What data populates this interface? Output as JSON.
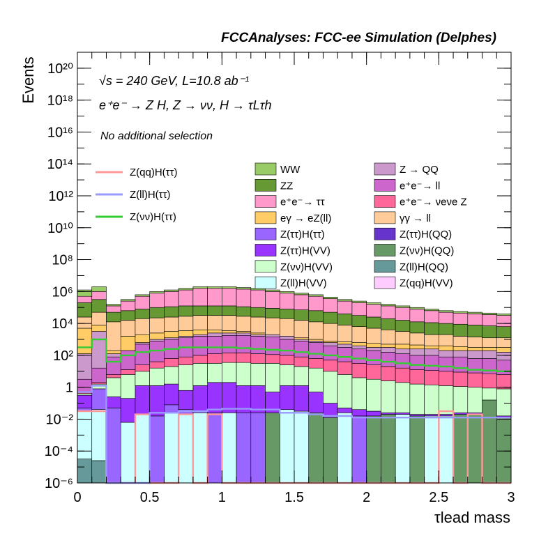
{
  "chart_data": {
    "type": "histogram-stack",
    "title": "FCCAnalyses: FCC-ee Simulation (Delphes)",
    "annotations": {
      "line1": "√s = 240 GeV, L=10.8 ab⁻¹",
      "line2": "e⁺e⁻ → Z H, Z → νν, H → τLτh",
      "line3": "No additional selection"
    },
    "xlabel": "τlead mass",
    "ylabel": "Events",
    "xlim": [
      0,
      3
    ],
    "ylim": [
      1e-06,
      1e+21
    ],
    "yscale": "log",
    "x_ticks": [
      "0",
      "0.5",
      "1",
      "1.5",
      "2",
      "2.5",
      "3"
    ],
    "x_tick_values": [
      0,
      0.5,
      1,
      1.5,
      2,
      2.5,
      3
    ],
    "y_ticks": [
      "10⁻⁶",
      "10⁻⁴",
      "10⁻²",
      "1",
      "10²",
      "10⁴",
      "10⁶",
      "10⁸",
      "10¹⁰",
      "10¹²",
      "10¹⁴",
      "10¹⁶",
      "10¹⁸",
      "10²⁰"
    ],
    "y_tick_exponents": [
      -6,
      -4,
      -2,
      0,
      2,
      4,
      6,
      8,
      10,
      12,
      14,
      16,
      18,
      20
    ],
    "bin_width": 0.1,
    "stack_order": [
      "Z(ll)H(QQ)",
      "Z(ll)H(VV)",
      "Z(qq)H(VV)",
      "Z(ττ)H(QQ)",
      "Z(νν)H(QQ)",
      "Z(ττ)H(ττ)",
      "Z(ττ)H(VV)",
      "Z(νν)H(VV)",
      "e⁺e⁻→ νeνe Z",
      "e⁺e⁻→ ll",
      "Z → QQ",
      "eγ → eZ(ll)",
      "γγ → ll",
      "ZZ",
      "e⁺e⁻→ ττ",
      "WW"
    ],
    "stack_boundaries_log10": {
      "Z(ll)H(QQ)": [
        -4.5,
        -4.6,
        -7,
        -7,
        -7,
        -7,
        -7,
        -7,
        -7,
        -7,
        -7,
        -7,
        -7,
        -7,
        -7,
        -7,
        -7,
        -7,
        -7,
        -7,
        -7,
        -7,
        -7,
        -7,
        -7,
        -7,
        -7,
        -7,
        -7,
        -7
      ],
      "Z(ll)H(VV)": [
        -1.5,
        -1.4,
        -7,
        -2.2,
        -1.7,
        -7,
        -1.6,
        -1.7,
        -1.6,
        -7,
        -1.6,
        -7,
        -7,
        -7,
        -1.4,
        -1.5,
        -7,
        -7,
        -1.6,
        -7,
        -7,
        -7,
        -1.7,
        -7,
        -1.8,
        -1.8,
        -7,
        -7,
        -7,
        -7
      ],
      "Z(qq)H(VV)": [
        -1.5,
        -1.4,
        -7,
        -2.2,
        -1.7,
        -7,
        -1.6,
        -1.7,
        -1.6,
        -7,
        -1.6,
        -7,
        -7,
        -7,
        -1.4,
        -1.5,
        -7,
        -7,
        -1.6,
        -7,
        -7,
        -7,
        -1.7,
        -7,
        -1.8,
        -1.8,
        -7,
        -7,
        -7,
        -7
      ],
      "Z(ττ)H(QQ)": [
        -1.5,
        -1.4,
        -7,
        -2.2,
        -1.7,
        -7,
        -1.6,
        -1.7,
        -1.6,
        -7,
        -1.6,
        -7,
        -7,
        -7,
        -1.4,
        -1.5,
        -7,
        -7,
        -1.6,
        -7,
        -7,
        -7,
        -1.7,
        -7,
        -1.8,
        -1.8,
        -7,
        -7,
        -7,
        -7
      ],
      "Z(νν)H(QQ)": [
        -1.5,
        -1.4,
        -7,
        -2.2,
        -1.7,
        -7,
        -1.6,
        -1.7,
        -1.6,
        -7,
        -1.6,
        -7,
        -7,
        -1.6,
        -1.4,
        -1.5,
        -1.6,
        -1.9,
        -1.6,
        -7,
        -1.8,
        -1.7,
        -1.7,
        -1.8,
        -1.8,
        -1.8,
        -1.7,
        -1.7,
        -0.8,
        -1.9
      ],
      "Z(ττ)H(ττ)": [
        -1.3,
        -0.1,
        -1.3,
        -2.2,
        -1.7,
        -1.8,
        -1.1,
        -1.4,
        -1.5,
        -1.6,
        -1.6,
        -1.6,
        -1.6,
        -1.6,
        -1.4,
        -1.5,
        -1.6,
        -1.9,
        -1.6,
        -1.8,
        -1.8,
        -1.7,
        -1.7,
        -1.8,
        -1.8,
        -1.8,
        -1.7,
        -1.7,
        -0.8,
        -1.9
      ],
      "Z(ττ)H(VV)": [
        -0.5,
        -0.1,
        -0.6,
        -0.7,
        0.1,
        0.1,
        0.2,
        -0.2,
        0.1,
        0.3,
        0.3,
        0.1,
        0.1,
        -0.3,
        0.1,
        0.1,
        -0.3,
        -1.0,
        -1.3,
        -1.4,
        -1.5,
        -1.6,
        -1.6,
        -1.7,
        -1.7,
        -1.7,
        -1.6,
        -1.6,
        -0.8,
        -1.8
      ],
      "Z(νν)H(VV)": [
        -0.4,
        0.2,
        0.6,
        0.8,
        1.0,
        1.2,
        1.3,
        1.4,
        1.5,
        1.5,
        1.55,
        1.55,
        1.5,
        1.5,
        1.4,
        1.3,
        1.2,
        1.0,
        0.8,
        0.6,
        0.5,
        0.4,
        0.3,
        0.2,
        0.15,
        0.1,
        0.05,
        0.0,
        -0.05,
        -0.1
      ],
      "e⁺e⁻→ νeνe Z": [
        -0.3,
        0.3,
        0.8,
        1.1,
        1.4,
        1.6,
        1.8,
        1.9,
        2.0,
        2.1,
        2.15,
        2.15,
        2.1,
        2.05,
        2.0,
        1.9,
        1.8,
        1.7,
        1.6,
        1.5,
        1.4,
        1.3,
        1.2,
        1.1,
        1.05,
        1.0,
        0.95,
        0.9,
        0.85,
        0.8
      ],
      "e⁺e⁻→ ll": [
        0.5,
        1.2,
        1.9,
        2.3,
        2.7,
        2.9,
        3.0,
        3.1,
        3.2,
        3.2,
        3.25,
        3.25,
        3.2,
        3.15,
        3.0,
        2.9,
        2.8,
        2.6,
        2.5,
        2.4,
        2.3,
        2.2,
        2.1,
        2.0,
        2.0,
        1.9,
        1.9,
        1.8,
        1.8,
        1.7
      ],
      "Z → QQ": [
        2.1,
        3.5,
        2.1,
        2.1,
        2.8,
        3.0,
        3.1,
        3.2,
        3.3,
        3.4,
        3.4,
        3.4,
        3.3,
        3.3,
        3.2,
        3.0,
        2.9,
        2.8,
        2.7,
        2.6,
        2.5,
        2.5,
        2.4,
        2.4,
        2.4,
        2.3,
        2.3,
        2.3,
        2.3,
        2.2
      ],
      "eγ → eZ(ll)": [
        3.7,
        3.9,
        2.3,
        3.2,
        3.3,
        3.4,
        3.5,
        3.55,
        3.6,
        3.6,
        3.55,
        3.5,
        3.4,
        3.3,
        3.2,
        3.1,
        3.0,
        2.9,
        2.85,
        2.8,
        2.75,
        2.7,
        2.7,
        2.65,
        2.6,
        2.6,
        2.55,
        2.5,
        2.5,
        2.5
      ],
      "γγ → ll": [
        4.4,
        4.7,
        4.1,
        4.2,
        4.3,
        4.35,
        4.4,
        4.45,
        4.5,
        4.5,
        4.5,
        4.45,
        4.4,
        4.35,
        4.3,
        4.2,
        4.1,
        4.0,
        3.9,
        3.8,
        3.7,
        3.6,
        3.5,
        3.4,
        3.3,
        3.3,
        3.2,
        3.15,
        3.1,
        3.1
      ],
      "ZZ": [
        5.3,
        5.5,
        4.7,
        4.8,
        4.9,
        5.0,
        5.05,
        5.1,
        5.1,
        5.1,
        5.1,
        5.05,
        5.0,
        4.95,
        4.9,
        4.85,
        4.8,
        4.7,
        4.6,
        4.5,
        4.4,
        4.3,
        4.2,
        4.1,
        4.05,
        4.0,
        3.95,
        3.9,
        3.85,
        3.8
      ],
      "e⁺e⁻→ ττ": [
        5.7,
        6.0,
        5.1,
        5.4,
        5.7,
        5.9,
        6.0,
        6.1,
        6.2,
        6.2,
        6.2,
        6.15,
        6.1,
        6.0,
        5.9,
        5.8,
        5.7,
        5.55,
        5.4,
        5.3,
        5.2,
        5.1,
        5.0,
        4.9,
        4.8,
        4.7,
        4.65,
        4.6,
        4.55,
        4.5
      ],
      "WW": [
        6.1,
        6.3,
        5.2,
        5.5,
        5.8,
        6.0,
        6.1,
        6.2,
        6.3,
        6.3,
        6.3,
        6.25,
        6.2,
        6.1,
        6.0,
        5.9,
        5.8,
        5.65,
        5.5,
        5.4,
        5.3,
        5.2,
        5.1,
        5.0,
        4.9,
        4.8,
        4.75,
        4.7,
        4.65,
        4.6
      ]
    },
    "signal_lines_log10": {
      "Z(qq)H(ττ)": [
        -1.5,
        -1.5,
        -7,
        -7,
        -1.7,
        -7,
        -7,
        -1.7,
        -7,
        -1.7,
        -7,
        -7,
        -7,
        -7,
        -7,
        -7,
        -7,
        -7,
        -7,
        -7,
        -7,
        -7,
        -7,
        -7,
        -7,
        -1.5,
        -7,
        -1.7,
        -7,
        -7
      ],
      "Z(ll)H(ττ)": [
        -0.3,
        0.1,
        -7,
        -7,
        -7,
        -1.6,
        -1.6,
        -1.5,
        -1.5,
        -1.4,
        -1.35,
        -1.35,
        -1.4,
        -1.4,
        -1.6,
        -1.6,
        -1.7,
        -1.8,
        -1.8,
        -1.9,
        -1.9,
        -1.9,
        -1.9,
        -1.9,
        -1.9,
        -1.9,
        -1.9,
        -1.9,
        -1.9,
        -1.9
      ],
      "Z(νν)H(ττ)": [
        2.5,
        3.0,
        1.6,
        2.0,
        2.2,
        2.3,
        2.4,
        2.5,
        2.5,
        2.5,
        2.5,
        2.45,
        2.4,
        2.35,
        2.3,
        2.2,
        2.1,
        2.0,
        1.9,
        1.8,
        1.7,
        1.6,
        1.5,
        1.4,
        1.35,
        1.3,
        1.2,
        1.1,
        1.05,
        1.0
      ]
    },
    "series_colors": {
      "WW": "#99cc66",
      "ZZ": "#669933",
      "e⁺e⁻→ ττ": "#ff99cc",
      "eγ → eZ(ll)": "#ffcc66",
      "Z(ττ)H(ττ)": "#9966ff",
      "Z(ττ)H(VV)": "#9933ff",
      "Z(νν)H(VV)": "#ccffcc",
      "Z(ll)H(VV)": "#ccffff",
      "Z → QQ": "#cc99cc",
      "e⁺e⁻→ ll": "#cc66cc",
      "e⁺e⁻→ νeνe Z": "#ff6699",
      "γγ → ll": "#ffcc99",
      "Z(ττ)H(QQ)": "#6633cc",
      "Z(νν)H(QQ)": "#669966",
      "Z(ll)H(QQ)": "#669999",
      "Z(qq)H(VV)": "#ffccff",
      "Z(qq)H(ττ)": "#ff9999",
      "Z(ll)H(ττ)": "#9999ff",
      "Z(νν)H(ττ)": "#33cc33"
    },
    "legend_lines": [
      {
        "name": "Z(qq)H(ττ)",
        "color": "#ff9999"
      },
      {
        "name": "Z(ll)H(ττ)",
        "color": "#9999ff"
      },
      {
        "name": "Z(νν)H(ττ)",
        "color": "#33cc33"
      }
    ],
    "legend_fills": [
      {
        "name": "WW",
        "color": "#99cc66"
      },
      {
        "name": "Z → QQ",
        "color": "#cc99cc"
      },
      {
        "name": "ZZ",
        "color": "#669933"
      },
      {
        "name": "e⁺e⁻→ ll",
        "color": "#cc66cc"
      },
      {
        "name": "e⁺e⁻→ ττ",
        "color": "#ff99cc"
      },
      {
        "name": "e⁺e⁻→ νeνe Z",
        "color": "#ff6699"
      },
      {
        "name": "eγ → eZ(ll)",
        "color": "#ffcc66"
      },
      {
        "name": "γγ → ll",
        "color": "#ffcc99"
      },
      {
        "name": "Z(ττ)H(ττ)",
        "color": "#9966ff"
      },
      {
        "name": "Z(ττ)H(QQ)",
        "color": "#6633cc"
      },
      {
        "name": "Z(ττ)H(VV)",
        "color": "#9933ff"
      },
      {
        "name": "Z(νν)H(QQ)",
        "color": "#669966"
      },
      {
        "name": "Z(νν)H(VV)",
        "color": "#ccffcc"
      },
      {
        "name": "Z(ll)H(QQ)",
        "color": "#669999"
      },
      {
        "name": "Z(ll)H(VV)",
        "color": "#ccffff"
      },
      {
        "name": "Z(qq)H(VV)",
        "color": "#ffccff"
      }
    ]
  }
}
